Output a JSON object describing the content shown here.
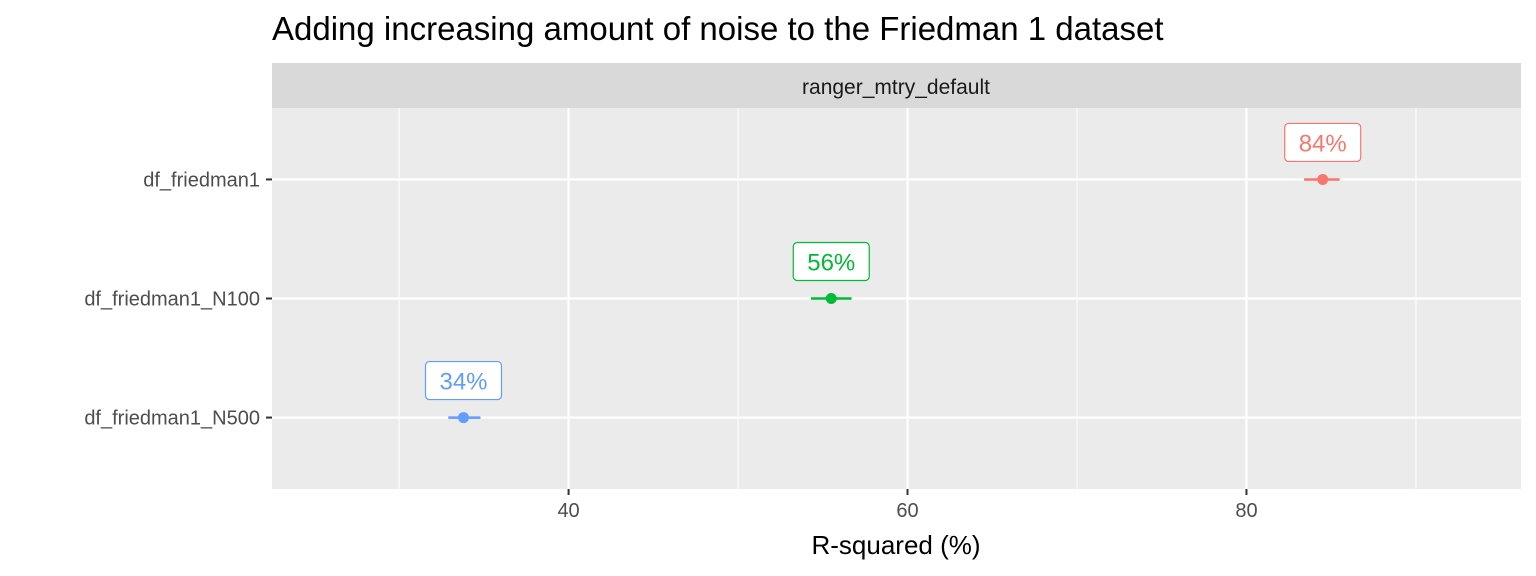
{
  "chart_data": {
    "type": "scatter",
    "title": "Adding increasing amount of noise to the Friedman 1 dataset",
    "facet": "ranger_mtry_default",
    "xlabel": "R-squared (%)",
    "ylabel": "",
    "xlim": [
      22.5,
      96.2
    ],
    "xticks": [
      40,
      60,
      80
    ],
    "xminor": [
      30,
      50,
      70,
      90
    ],
    "grid": true,
    "legend": "none",
    "categories": [
      "df_friedman1",
      "df_friedman1_N100",
      "df_friedman1_N500"
    ],
    "points": [
      {
        "category": "df_friedman1",
        "value": 84.5,
        "low": 83.4,
        "high": 85.5,
        "label": "84%",
        "color": "#F8766D"
      },
      {
        "category": "df_friedman1_N100",
        "value": 55.5,
        "low": 54.3,
        "high": 56.7,
        "label": "56%",
        "color": "#00BA38"
      },
      {
        "category": "df_friedman1_N500",
        "value": 33.8,
        "low": 32.9,
        "high": 34.8,
        "label": "34%",
        "color": "#619CFF"
      }
    ]
  }
}
